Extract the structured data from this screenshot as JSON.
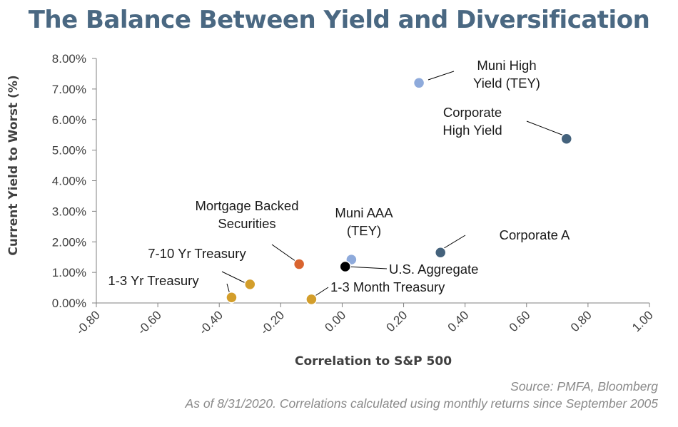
{
  "title": "The Balance Between Yield and Diversification",
  "source": "Source: PMFA, Bloomberg",
  "note": "As of 8/31/2020. Correlations calculated using monthly returns since September 2005",
  "colors": {
    "title": "#4a6882",
    "light_blue": "#8eaadb",
    "dark_slate": "#44627c",
    "orange": "#d9642f",
    "gold": "#d39e2b",
    "black": "#000000",
    "axis": "#808080"
  },
  "chart_data": {
    "type": "scatter",
    "title": "The Balance Between Yield and Diversification",
    "xlabel": "Correlation to S&P 500",
    "ylabel": "Current Yield to Worst (%)",
    "xlim": [
      -0.8,
      1.0
    ],
    "ylim": [
      0,
      0.08
    ],
    "x_ticks": [
      "-0.80",
      "-0.60",
      "-0.40",
      "-0.20",
      "0.00",
      "0.20",
      "0.40",
      "0.60",
      "0.80",
      "1.00"
    ],
    "y_ticks": [
      "0.00%",
      "1.00%",
      "2.00%",
      "3.00%",
      "4.00%",
      "5.00%",
      "6.00%",
      "7.00%",
      "8.00%"
    ],
    "grid": false,
    "legend": "none",
    "points": [
      {
        "label": "Muni High Yield (TEY)",
        "lines": [
          "Muni High",
          "Yield (TEY)"
        ],
        "x": 0.25,
        "y": 0.072,
        "color": "#8eaadb"
      },
      {
        "label": "Corporate High Yield",
        "lines": [
          "Corporate",
          "High Yield"
        ],
        "x": 0.73,
        "y": 0.0537,
        "color": "#44627c"
      },
      {
        "label": "Corporate A",
        "lines": [
          "Corporate A"
        ],
        "x": 0.32,
        "y": 0.0165,
        "color": "#44627c"
      },
      {
        "label": "Muni AAA (TEY)",
        "lines": [
          "Muni AAA",
          "(TEY)"
        ],
        "x": 0.03,
        "y": 0.0142,
        "color": "#8eaadb"
      },
      {
        "label": "U.S. Aggregate",
        "lines": [
          "U.S. Aggregate"
        ],
        "x": 0.01,
        "y": 0.0119,
        "color": "#000000"
      },
      {
        "label": "Mortgage Backed Securities",
        "lines": [
          "Mortgage Backed",
          "Securities"
        ],
        "x": -0.14,
        "y": 0.0127,
        "color": "#d9642f"
      },
      {
        "label": "7-10 Yr Treasury",
        "lines": [
          "7-10 Yr Treasury"
        ],
        "x": -0.3,
        "y": 0.0061,
        "color": "#d39e2b"
      },
      {
        "label": "1-3 Yr Treasury",
        "lines": [
          "1-3 Yr Treasury"
        ],
        "x": -0.36,
        "y": 0.0018,
        "color": "#d39e2b"
      },
      {
        "label": "1-3 Month Treasury",
        "lines": [
          "1-3 Month Treasury"
        ],
        "x": -0.1,
        "y": 0.0012,
        "color": "#d39e2b"
      }
    ]
  }
}
